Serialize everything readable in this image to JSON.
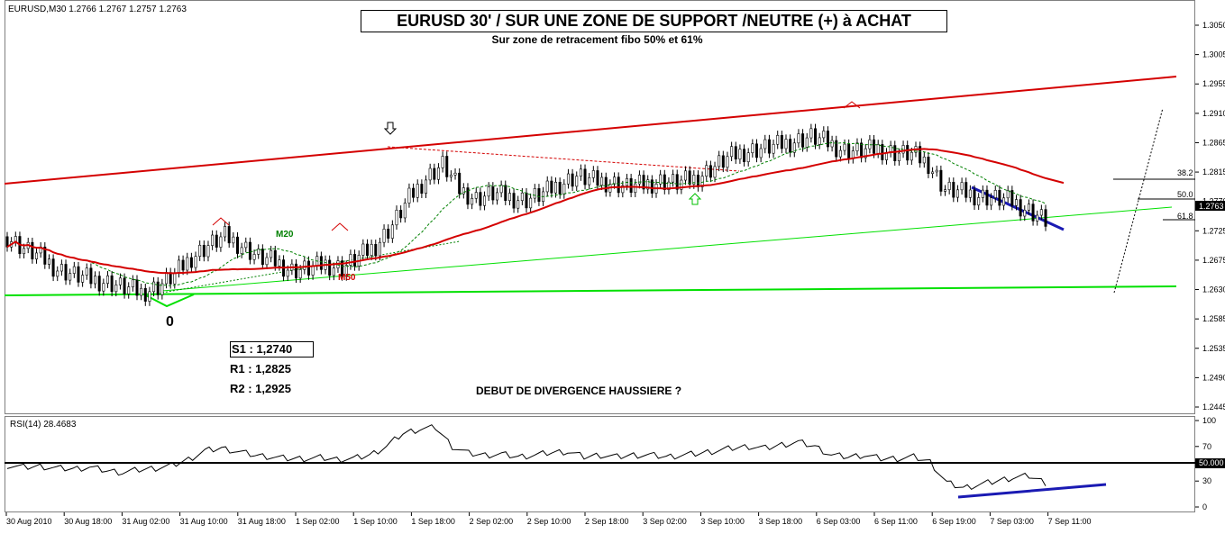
{
  "header": {
    "symbol_info": "EURUSD,M30  1.2766 1.2767 1.2757 1.2763",
    "title": "EURUSD 30' /  SUR UNE ZONE DE SUPPORT /NEUTRE (+) à ACHAT",
    "subtitle": "Sur zone de retracement fibo 50% et 61%"
  },
  "annotations": {
    "s1": "S1 : 1,2740",
    "r1": "R1 : 1,2825",
    "r2": "R2 : 1,2925",
    "divergence": "DEBUT DE DIVERGENCE HAUSSIERE ?",
    "zero_mark": "0",
    "m20": "M20",
    "m50": "M50"
  },
  "fibo_labels": [
    "38.2",
    "50.0",
    "61.8"
  ],
  "rsi": {
    "label": "RSI(14) 28.4683"
  },
  "colors": {
    "candle": "#000000",
    "m50": "#d40000",
    "m20": "#008000",
    "trendline_red": "#d40000",
    "support_green": "#00e000",
    "divergence_blue": "#1a1ab3",
    "price_tag_bg": "#000000",
    "rsi_line": "#000000",
    "level_50_bg": "#000000"
  },
  "icons": {
    "arrow_down": "down-arrow-icon",
    "arrow_up": "up-arrow-icon"
  },
  "chart_data": [
    {
      "type": "candlestick",
      "title": "EURUSD 30' /  SUR UNE ZONE DE SUPPORT /NEUTRE (+) à ACHAT",
      "ylim": [
        1.2445,
        1.3095
      ],
      "y_ticks": [
        "1.3050",
        "1.3005",
        "1.2955",
        "1.2910",
        "1.2865",
        "1.2815",
        "1.2770",
        "1.2725",
        "1.2675",
        "1.2630",
        "1.2585",
        "1.2535",
        "1.2490",
        "1.2445"
      ],
      "current_price": "1.2763",
      "x_ticks": [
        "30 Aug 2010",
        "30 Aug 18:00",
        "31 Aug 02:00",
        "31 Aug 10:00",
        "31 Aug 18:00",
        "1 Sep 02:00",
        "1 Sep 10:00",
        "1 Sep 18:00",
        "2 Sep 02:00",
        "2 Sep 10:00",
        "2 Sep 18:00",
        "3 Sep 02:00",
        "3 Sep 10:00",
        "3 Sep 18:00",
        "6 Sep 03:00",
        "6 Sep 11:00",
        "6 Sep 19:00",
        "7 Sep 03:00",
        "7 Sep 11:00"
      ],
      "close_path": [
        1.2735,
        1.2715,
        1.27,
        1.268,
        1.267,
        1.2662,
        1.2658,
        1.2648,
        1.264,
        1.265,
        1.267,
        1.27,
        1.272,
        1.2735,
        1.272,
        1.27,
        1.2692,
        1.2678,
        1.268,
        1.2688,
        1.2682,
        1.27,
        1.272,
        1.2755,
        1.28,
        1.2835,
        1.2858,
        1.2815,
        1.28,
        1.2808,
        1.2802,
        1.2798,
        1.2808,
        1.2825,
        1.2838,
        1.283,
        1.2828,
        1.282,
        1.2823,
        1.283,
        1.2826,
        1.2833,
        1.285,
        1.2868,
        1.288,
        1.2885,
        1.289,
        1.2898,
        1.2905,
        1.2895,
        1.2882,
        1.288,
        1.2885,
        1.2878,
        1.2875,
        1.286,
        1.2815,
        1.281,
        1.2805,
        1.28,
        1.2795,
        1.278,
        1.2763
      ],
      "m20_label": "M20",
      "m50_label": "M50"
    },
    {
      "type": "line",
      "title": "RSI(14) 28.4683",
      "ylim": [
        0,
        100
      ],
      "y_ticks": [
        "100",
        "70",
        "50.000",
        "30",
        "0"
      ],
      "level": 50,
      "values": [
        48,
        46,
        47,
        45,
        44,
        46,
        42,
        40,
        43,
        45,
        48,
        55,
        65,
        68,
        64,
        60,
        58,
        56,
        56,
        57,
        55,
        56,
        60,
        70,
        85,
        90,
        92,
        70,
        62,
        60,
        61,
        58,
        60,
        63,
        64,
        58,
        60,
        58,
        60,
        60,
        58,
        60,
        62,
        65,
        68,
        70,
        68,
        72,
        75,
        70,
        60,
        58,
        60,
        56,
        56,
        58,
        52,
        28,
        22,
        26,
        30,
        34,
        36,
        28
      ]
    }
  ]
}
